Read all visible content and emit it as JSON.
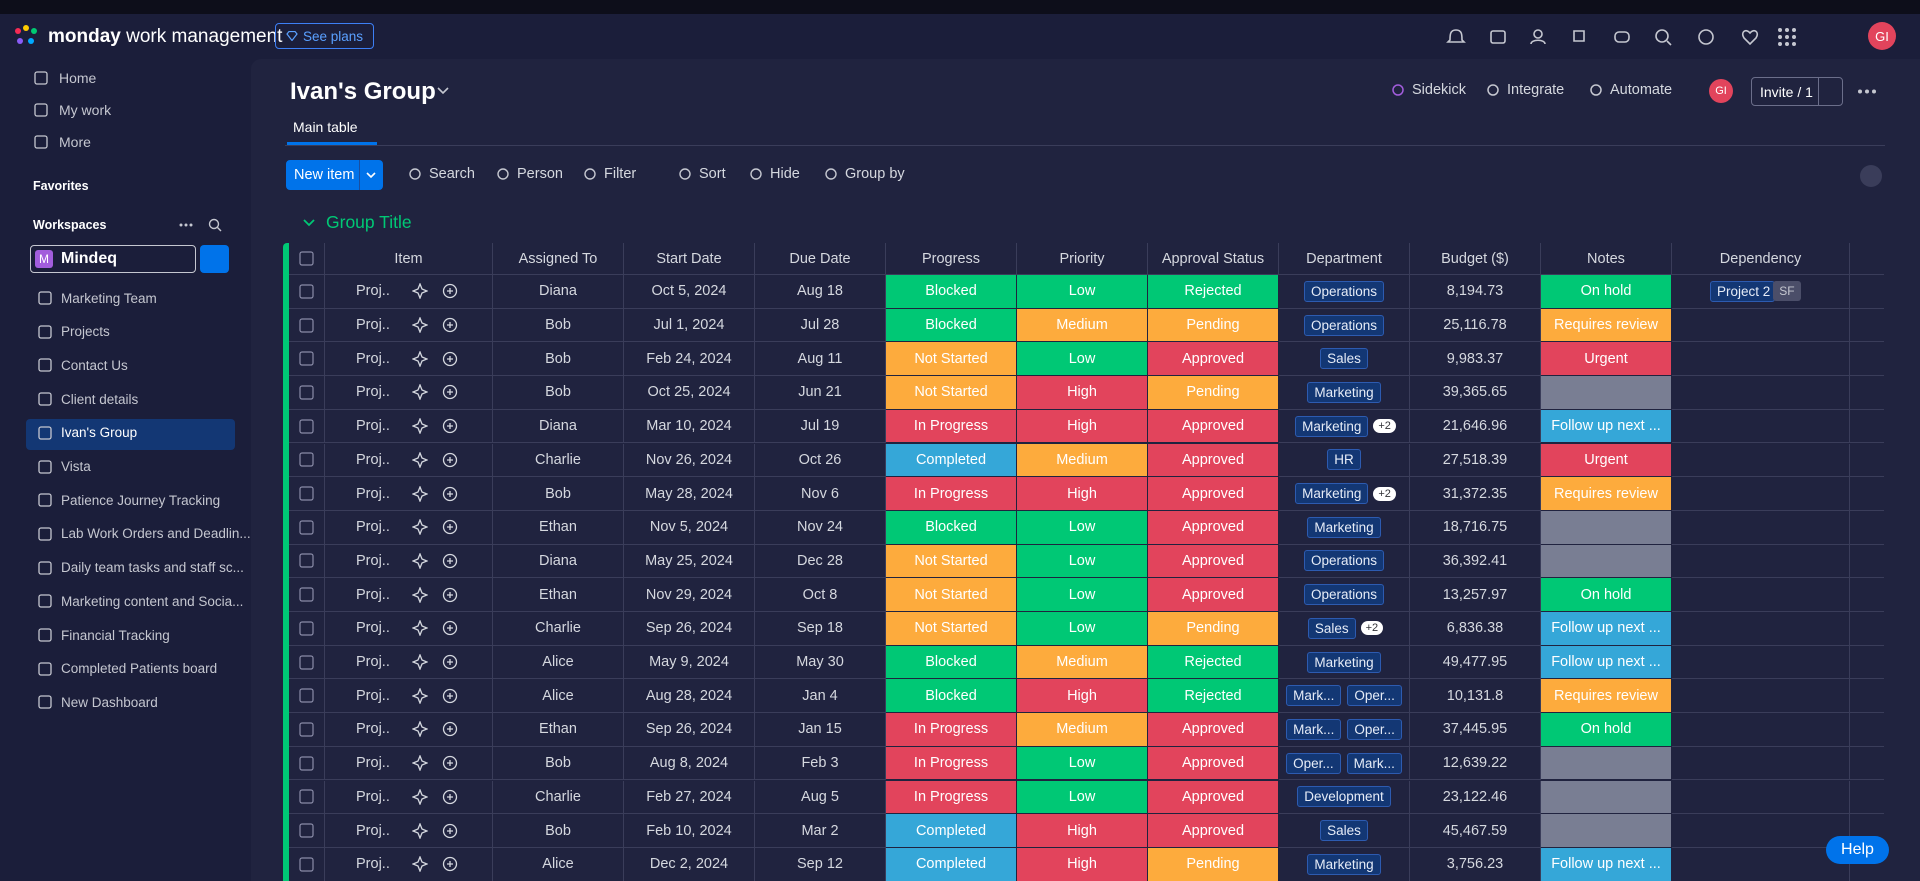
{
  "header": {
    "brand": "monday",
    "brand_sub": "work management",
    "see_plans": "See plans",
    "avatar": "GI"
  },
  "sidebar": {
    "nav": [
      "Home",
      "My work",
      "More"
    ],
    "favorites": "Favorites",
    "workspaces": "Workspaces",
    "workspace": {
      "initial": "M",
      "name": "Mindeq"
    },
    "boards": [
      "Marketing Team",
      "Projects",
      "Contact Us",
      "Client details",
      "Ivan's Group",
      "Vista",
      "Patience Journey Tracking",
      "Lab Work Orders and Deadlin...",
      "Daily team tasks and staff sc...",
      "Marketing content and Socia...",
      "Financial Tracking",
      "Completed Patients board",
      "New Dashboard"
    ],
    "active_board": 4
  },
  "board": {
    "title": "Ivan's Group",
    "actions": [
      "Sidekick",
      "Integrate",
      "Automate"
    ],
    "avatar": "GI",
    "invite": "Invite / 1",
    "tabs": [
      "Main table"
    ],
    "toolbar": {
      "new_item": "New item",
      "tools": [
        "Search",
        "Person",
        "Filter",
        "Sort",
        "Hide",
        "Group by"
      ]
    },
    "group": {
      "title": "Group Title",
      "color": "#00c875",
      "columns": [
        "Item",
        "Assigned To",
        "Start Date",
        "Due Date",
        "Progress",
        "Priority",
        "Approval Status",
        "Department",
        "Budget ($)",
        "Notes",
        "Dependency"
      ],
      "rows": [
        {
          "item": "Proj...",
          "assigned": "Diana",
          "start": "Oct 5, 2024",
          "due": "Aug 18",
          "progress": "Blocked",
          "priority": "Low",
          "approval": "Rejected",
          "department": [
            "Operations"
          ],
          "budget": "8,194.73",
          "notes": "On hold",
          "dependency": {
            "name": "Project 2",
            "tag": "SF"
          }
        },
        {
          "item": "Proj...",
          "assigned": "Bob",
          "start": "Jul 1, 2024",
          "due": "Jul 28",
          "progress": "Blocked",
          "priority": "Medium",
          "approval": "Pending",
          "department": [
            "Operations"
          ],
          "budget": "25,116.78",
          "notes": "Requires review"
        },
        {
          "item": "Proj...",
          "assigned": "Bob",
          "start": "Feb 24, 2024",
          "due": "Aug 11",
          "progress": "Not Started",
          "priority": "Low",
          "approval": "Approved",
          "department": [
            "Sales"
          ],
          "budget": "9,983.37",
          "notes": "Urgent"
        },
        {
          "item": "Proj...",
          "assigned": "Bob",
          "start": "Oct 25, 2024",
          "due": "Jun 21",
          "progress": "Not Started",
          "priority": "High",
          "approval": "Pending",
          "department": [
            "Marketing"
          ],
          "budget": "39,365.65",
          "notes": null
        },
        {
          "item": "Proj...",
          "assigned": "Diana",
          "start": "Mar 10, 2024",
          "due": "Jul 19",
          "progress": "In Progress",
          "priority": "High",
          "approval": "Approved",
          "department": [
            "Marketing"
          ],
          "department_more": "+2",
          "budget": "21,646.96",
          "notes": "Follow up next ..."
        },
        {
          "item": "Proj...",
          "assigned": "Charlie",
          "start": "Nov 26, 2024",
          "due": "Oct 26",
          "progress": "Completed",
          "priority": "Medium",
          "approval": "Approved",
          "department": [
            "HR"
          ],
          "budget": "27,518.39",
          "notes": "Urgent"
        },
        {
          "item": "Proj...",
          "assigned": "Bob",
          "start": "May 28, 2024",
          "due": "Nov 6",
          "progress": "In Progress",
          "priority": "High",
          "approval": "Approved",
          "department": [
            "Marketing"
          ],
          "department_more": "+2",
          "budget": "31,372.35",
          "notes": "Requires review"
        },
        {
          "item": "Proj...",
          "assigned": "Ethan",
          "start": "Nov 5, 2024",
          "due": "Nov 24",
          "progress": "Blocked",
          "priority": "Low",
          "approval": "Approved",
          "department": [
            "Marketing"
          ],
          "budget": "18,716.75",
          "notes": null
        },
        {
          "item": "Proj...",
          "assigned": "Diana",
          "start": "May 25, 2024",
          "due": "Dec 28",
          "progress": "Not Started",
          "priority": "Low",
          "approval": "Approved",
          "department": [
            "Operations"
          ],
          "budget": "36,392.41",
          "notes": null
        },
        {
          "item": "Proj...",
          "assigned": "Ethan",
          "start": "Nov 29, 2024",
          "due": "Oct 8",
          "progress": "Not Started",
          "priority": "Low",
          "approval": "Approved",
          "department": [
            "Operations"
          ],
          "budget": "13,257.97",
          "notes": "On hold"
        },
        {
          "item": "Proj...",
          "assigned": "Charlie",
          "start": "Sep 26, 2024",
          "due": "Sep 18",
          "progress": "Not Started",
          "priority": "Low",
          "approval": "Pending",
          "department": [
            "Sales"
          ],
          "department_more": "+2",
          "budget": "6,836.38",
          "notes": "Follow up next ..."
        },
        {
          "item": "Proj...",
          "assigned": "Alice",
          "start": "May 9, 2024",
          "due": "May 30",
          "progress": "Blocked",
          "priority": "Medium",
          "approval": "Rejected",
          "department": [
            "Marketing"
          ],
          "budget": "49,477.95",
          "notes": "Follow up next ..."
        },
        {
          "item": "Proj...",
          "assigned": "Alice",
          "start": "Aug 28, 2024",
          "due": "Jan 4",
          "progress": "Blocked",
          "priority": "High",
          "approval": "Rejected",
          "department": [
            "Mark...",
            "Oper..."
          ],
          "budget": "10,131.8",
          "notes": "Requires review"
        },
        {
          "item": "Proj...",
          "assigned": "Ethan",
          "start": "Sep 26, 2024",
          "due": "Jan 15",
          "progress": "In Progress",
          "priority": "Medium",
          "approval": "Approved",
          "department": [
            "Mark...",
            "Oper..."
          ],
          "budget": "37,445.95",
          "notes": "On hold"
        },
        {
          "item": "Proj...",
          "assigned": "Bob",
          "start": "Aug 8, 2024",
          "due": "Feb 3",
          "progress": "In Progress",
          "priority": "Low",
          "approval": "Approved",
          "department": [
            "Oper...",
            "Mark..."
          ],
          "budget": "12,639.22",
          "notes": null
        },
        {
          "item": "Proj...",
          "assigned": "Charlie",
          "start": "Feb 27, 2024",
          "due": "Aug 5",
          "progress": "In Progress",
          "priority": "Low",
          "approval": "Approved",
          "department": [
            "Development"
          ],
          "budget": "23,122.46",
          "notes": null
        },
        {
          "item": "Proj...",
          "assigned": "Bob",
          "start": "Feb 10, 2024",
          "due": "Mar 2",
          "progress": "Completed",
          "priority": "High",
          "approval": "Approved",
          "department": [
            "Sales"
          ],
          "budget": "45,467.59",
          "notes": null
        },
        {
          "item": "Proj...",
          "assigned": "Alice",
          "start": "Dec 2, 2024",
          "due": "Sep 12",
          "progress": "Completed",
          "priority": "High",
          "approval": "Pending",
          "department": [
            "Marketing"
          ],
          "budget": "3,756.23",
          "notes": "Follow up next ..."
        }
      ]
    }
  },
  "label_colors": {
    "Blocked": "#00c875",
    "Not Started": "#fdab3d",
    "In Progress": "#e2445c",
    "Completed": "#35a7d8",
    "Low": "#00c875",
    "Medium": "#fdab3d",
    "High": "#e2445c",
    "Rejected": "#00c875",
    "Pending": "#fdab3d",
    "Approved": "#e2445c",
    "On hold": "#00c875",
    "Requires review": "#fdab3d",
    "Urgent": "#e2445c",
    "Follow up next ...": "#35a7d8"
  },
  "help": "Help"
}
